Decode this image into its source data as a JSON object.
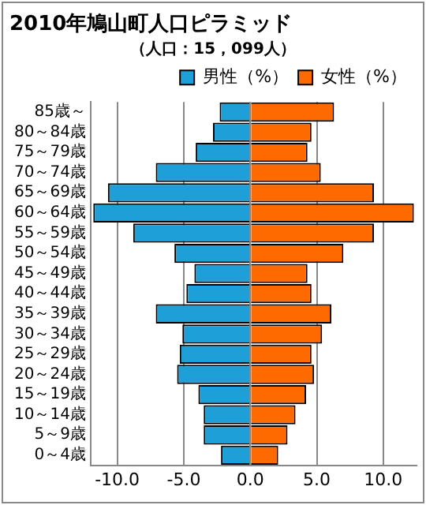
{
  "chart_data": {
    "type": "bar",
    "orientation": "horizontal",
    "stacked": true,
    "title": "2010年鳩山町人口ピラミッド",
    "subtitle": "（人口：15，099人）",
    "categories": [
      "85歳～",
      "80～84歳",
      "75～79歳",
      "70～74歳",
      "65～69歳",
      "60～64歳",
      "55～59歳",
      "50～54歳",
      "45～49歳",
      "40～44歳",
      "35～39歳",
      "30～34歳",
      "25～29歳",
      "20～24歳",
      "15～19歳",
      "10～14歳",
      "5～9歳",
      "0～4歳"
    ],
    "series": [
      {
        "name": "男性（%）",
        "color": "#1f9fd8",
        "values": [
          -2.3,
          -2.8,
          -4.1,
          -7.1,
          -10.7,
          -11.8,
          -8.8,
          -5.7,
          -4.2,
          -4.8,
          -7.1,
          -5.1,
          -5.3,
          -5.5,
          -3.9,
          -3.5,
          -3.5,
          -2.2
        ]
      },
      {
        "name": "女性（%）",
        "color": "#ff6a00",
        "values": [
          6.3,
          4.6,
          4.3,
          5.3,
          9.3,
          12.3,
          9.3,
          7.0,
          4.3,
          4.6,
          6.1,
          5.4,
          4.6,
          4.8,
          4.2,
          3.4,
          2.8,
          2.1
        ]
      }
    ],
    "xlim": [
      -12,
      12.5
    ],
    "xticks": [
      {
        "value": -10,
        "label": "-10.0"
      },
      {
        "value": -5,
        "label": "-5.0"
      },
      {
        "value": 0,
        "label": "0.0"
      },
      {
        "value": 5,
        "label": "5.0"
      },
      {
        "value": 10,
        "label": "10.0"
      }
    ],
    "grid": "x",
    "legend": "top right"
  }
}
